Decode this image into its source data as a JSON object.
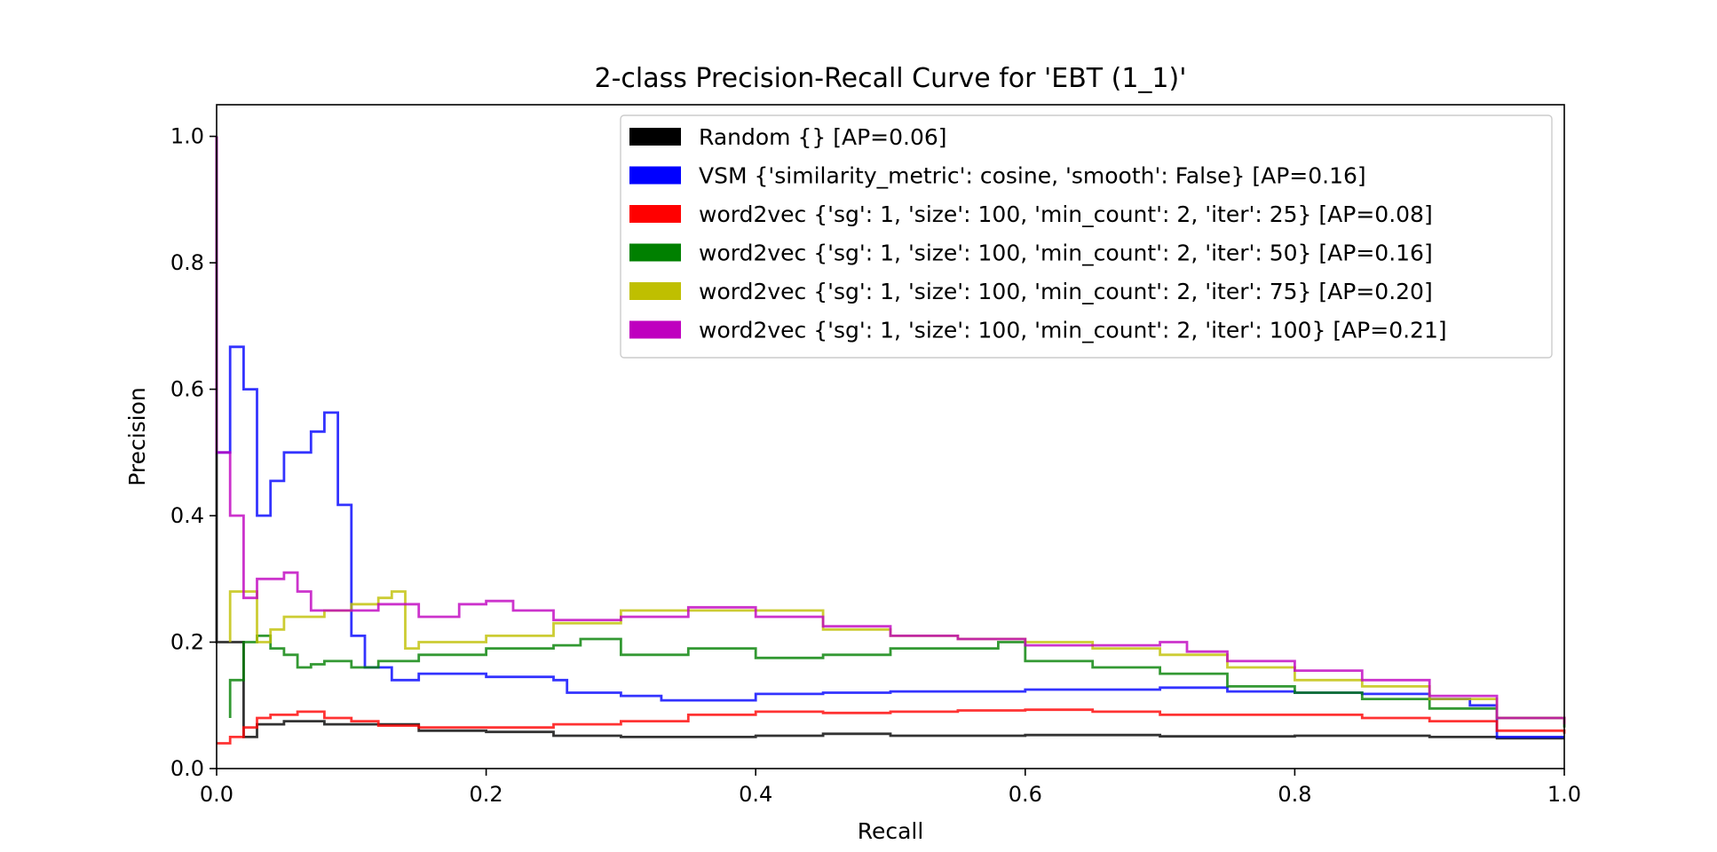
{
  "chart_data": {
    "type": "line",
    "title": "2-class Precision-Recall Curve for 'EBT (1_1)'",
    "xlabel": "Recall",
    "ylabel": "Precision",
    "xlim": [
      0.0,
      1.0
    ],
    "ylim": [
      0.0,
      1.05
    ],
    "x_ticks": [
      "0.0",
      "0.2",
      "0.4",
      "0.6",
      "0.8",
      "1.0"
    ],
    "y_ticks": [
      "0.0",
      "0.2",
      "0.4",
      "0.6",
      "0.8",
      "1.0"
    ],
    "grid": false,
    "legend_position": "upper-right",
    "step": true,
    "series": [
      {
        "name": "Random {} [AP=0.06]",
        "color": "#000000",
        "points": [
          [
            0,
            1.0
          ],
          [
            0,
            0.2
          ],
          [
            0.01,
            0.2
          ],
          [
            0.02,
            0.05
          ],
          [
            0.03,
            0.07
          ],
          [
            0.05,
            0.075
          ],
          [
            0.08,
            0.07
          ],
          [
            0.12,
            0.07
          ],
          [
            0.15,
            0.06
          ],
          [
            0.2,
            0.058
          ],
          [
            0.25,
            0.052
          ],
          [
            0.3,
            0.05
          ],
          [
            0.4,
            0.052
          ],
          [
            0.45,
            0.055
          ],
          [
            0.5,
            0.052
          ],
          [
            0.6,
            0.053
          ],
          [
            0.7,
            0.051
          ],
          [
            0.8,
            0.052
          ],
          [
            0.9,
            0.05
          ],
          [
            0.95,
            0.048
          ],
          [
            1.0,
            0.048
          ]
        ]
      },
      {
        "name": "VSM {'similarity_metric': cosine, 'smooth': False} [AP=0.16]",
        "color": "#0000ff",
        "points": [
          [
            0,
            0.5
          ],
          [
            0.01,
            0.5
          ],
          [
            0.01,
            0.667
          ],
          [
            0.02,
            0.667
          ],
          [
            0.02,
            0.6
          ],
          [
            0.03,
            0.6
          ],
          [
            0.03,
            0.4
          ],
          [
            0.04,
            0.4
          ],
          [
            0.04,
            0.455
          ],
          [
            0.05,
            0.455
          ],
          [
            0.05,
            0.5
          ],
          [
            0.07,
            0.5
          ],
          [
            0.07,
            0.533
          ],
          [
            0.08,
            0.533
          ],
          [
            0.08,
            0.563
          ],
          [
            0.09,
            0.563
          ],
          [
            0.09,
            0.417
          ],
          [
            0.1,
            0.417
          ],
          [
            0.1,
            0.21
          ],
          [
            0.11,
            0.21
          ],
          [
            0.11,
            0.16
          ],
          [
            0.13,
            0.16
          ],
          [
            0.13,
            0.14
          ],
          [
            0.15,
            0.15
          ],
          [
            0.2,
            0.145
          ],
          [
            0.25,
            0.14
          ],
          [
            0.26,
            0.12
          ],
          [
            0.3,
            0.115
          ],
          [
            0.33,
            0.108
          ],
          [
            0.4,
            0.118
          ],
          [
            0.45,
            0.12
          ],
          [
            0.5,
            0.122
          ],
          [
            0.6,
            0.125
          ],
          [
            0.7,
            0.128
          ],
          [
            0.75,
            0.122
          ],
          [
            0.8,
            0.12
          ],
          [
            0.85,
            0.118
          ],
          [
            0.9,
            0.11
          ],
          [
            0.93,
            0.1
          ],
          [
            0.95,
            0.05
          ],
          [
            1.0,
            0.05
          ]
        ]
      },
      {
        "name": "word2vec {'sg': 1, 'size': 100, 'min_count': 2, 'iter': 25} [AP=0.08]",
        "color": "#ff0000",
        "points": [
          [
            0,
            0.04
          ],
          [
            0.01,
            0.05
          ],
          [
            0.02,
            0.065
          ],
          [
            0.03,
            0.08
          ],
          [
            0.04,
            0.085
          ],
          [
            0.06,
            0.09
          ],
          [
            0.08,
            0.08
          ],
          [
            0.1,
            0.075
          ],
          [
            0.12,
            0.068
          ],
          [
            0.15,
            0.065
          ],
          [
            0.2,
            0.065
          ],
          [
            0.25,
            0.07
          ],
          [
            0.3,
            0.075
          ],
          [
            0.35,
            0.085
          ],
          [
            0.4,
            0.09
          ],
          [
            0.45,
            0.088
          ],
          [
            0.5,
            0.09
          ],
          [
            0.55,
            0.092
          ],
          [
            0.6,
            0.093
          ],
          [
            0.65,
            0.09
          ],
          [
            0.7,
            0.085
          ],
          [
            0.75,
            0.085
          ],
          [
            0.8,
            0.085
          ],
          [
            0.85,
            0.08
          ],
          [
            0.9,
            0.075
          ],
          [
            0.95,
            0.06
          ],
          [
            1.0,
            0.055
          ]
        ]
      },
      {
        "name": "word2vec {'sg': 1, 'size': 100, 'min_count': 2, 'iter': 50} [AP=0.16]",
        "color": "#008000",
        "points": [
          [
            0.01,
            0.08
          ],
          [
            0.01,
            0.14
          ],
          [
            0.02,
            0.2
          ],
          [
            0.03,
            0.21
          ],
          [
            0.04,
            0.19
          ],
          [
            0.05,
            0.18
          ],
          [
            0.06,
            0.16
          ],
          [
            0.07,
            0.165
          ],
          [
            0.08,
            0.17
          ],
          [
            0.1,
            0.16
          ],
          [
            0.12,
            0.17
          ],
          [
            0.15,
            0.18
          ],
          [
            0.2,
            0.19
          ],
          [
            0.25,
            0.195
          ],
          [
            0.27,
            0.205
          ],
          [
            0.3,
            0.18
          ],
          [
            0.35,
            0.19
          ],
          [
            0.4,
            0.175
          ],
          [
            0.45,
            0.18
          ],
          [
            0.5,
            0.19
          ],
          [
            0.55,
            0.19
          ],
          [
            0.58,
            0.2
          ],
          [
            0.6,
            0.17
          ],
          [
            0.65,
            0.16
          ],
          [
            0.7,
            0.15
          ],
          [
            0.75,
            0.13
          ],
          [
            0.8,
            0.12
          ],
          [
            0.85,
            0.11
          ],
          [
            0.9,
            0.095
          ],
          [
            0.95,
            0.08
          ],
          [
            1.0,
            0.065
          ]
        ]
      },
      {
        "name": "word2vec {'sg': 1, 'size': 100, 'min_count': 2, 'iter': 75} [AP=0.20]",
        "color": "#bfbf00",
        "points": [
          [
            0.01,
            0.2
          ],
          [
            0.01,
            0.28
          ],
          [
            0.02,
            0.28
          ],
          [
            0.03,
            0.2
          ],
          [
            0.04,
            0.22
          ],
          [
            0.05,
            0.24
          ],
          [
            0.08,
            0.25
          ],
          [
            0.1,
            0.26
          ],
          [
            0.12,
            0.27
          ],
          [
            0.13,
            0.28
          ],
          [
            0.14,
            0.19
          ],
          [
            0.15,
            0.2
          ],
          [
            0.2,
            0.21
          ],
          [
            0.25,
            0.23
          ],
          [
            0.3,
            0.25
          ],
          [
            0.35,
            0.25
          ],
          [
            0.4,
            0.25
          ],
          [
            0.43,
            0.25
          ],
          [
            0.45,
            0.22
          ],
          [
            0.5,
            0.21
          ],
          [
            0.55,
            0.205
          ],
          [
            0.6,
            0.2
          ],
          [
            0.65,
            0.19
          ],
          [
            0.7,
            0.18
          ],
          [
            0.75,
            0.16
          ],
          [
            0.8,
            0.14
          ],
          [
            0.85,
            0.13
          ],
          [
            0.9,
            0.11
          ],
          [
            0.95,
            0.08
          ],
          [
            1.0,
            0.07
          ]
        ]
      },
      {
        "name": "word2vec {'sg': 1, 'size': 100, 'min_count': 2, 'iter': 100} [AP=0.21]",
        "color": "#bf00bf",
        "points": [
          [
            0,
            1.0
          ],
          [
            0,
            0.5
          ],
          [
            0.01,
            0.5
          ],
          [
            0.01,
            0.4
          ],
          [
            0.02,
            0.4
          ],
          [
            0.02,
            0.27
          ],
          [
            0.03,
            0.3
          ],
          [
            0.05,
            0.31
          ],
          [
            0.06,
            0.28
          ],
          [
            0.07,
            0.25
          ],
          [
            0.1,
            0.25
          ],
          [
            0.12,
            0.26
          ],
          [
            0.15,
            0.24
          ],
          [
            0.18,
            0.26
          ],
          [
            0.2,
            0.265
          ],
          [
            0.22,
            0.25
          ],
          [
            0.25,
            0.235
          ],
          [
            0.3,
            0.24
          ],
          [
            0.35,
            0.255
          ],
          [
            0.4,
            0.24
          ],
          [
            0.45,
            0.225
          ],
          [
            0.5,
            0.21
          ],
          [
            0.55,
            0.205
          ],
          [
            0.6,
            0.195
          ],
          [
            0.65,
            0.195
          ],
          [
            0.7,
            0.2
          ],
          [
            0.72,
            0.185
          ],
          [
            0.75,
            0.17
          ],
          [
            0.8,
            0.155
          ],
          [
            0.85,
            0.14
          ],
          [
            0.9,
            0.115
          ],
          [
            0.95,
            0.08
          ],
          [
            1.0,
            0.07
          ]
        ]
      }
    ]
  }
}
